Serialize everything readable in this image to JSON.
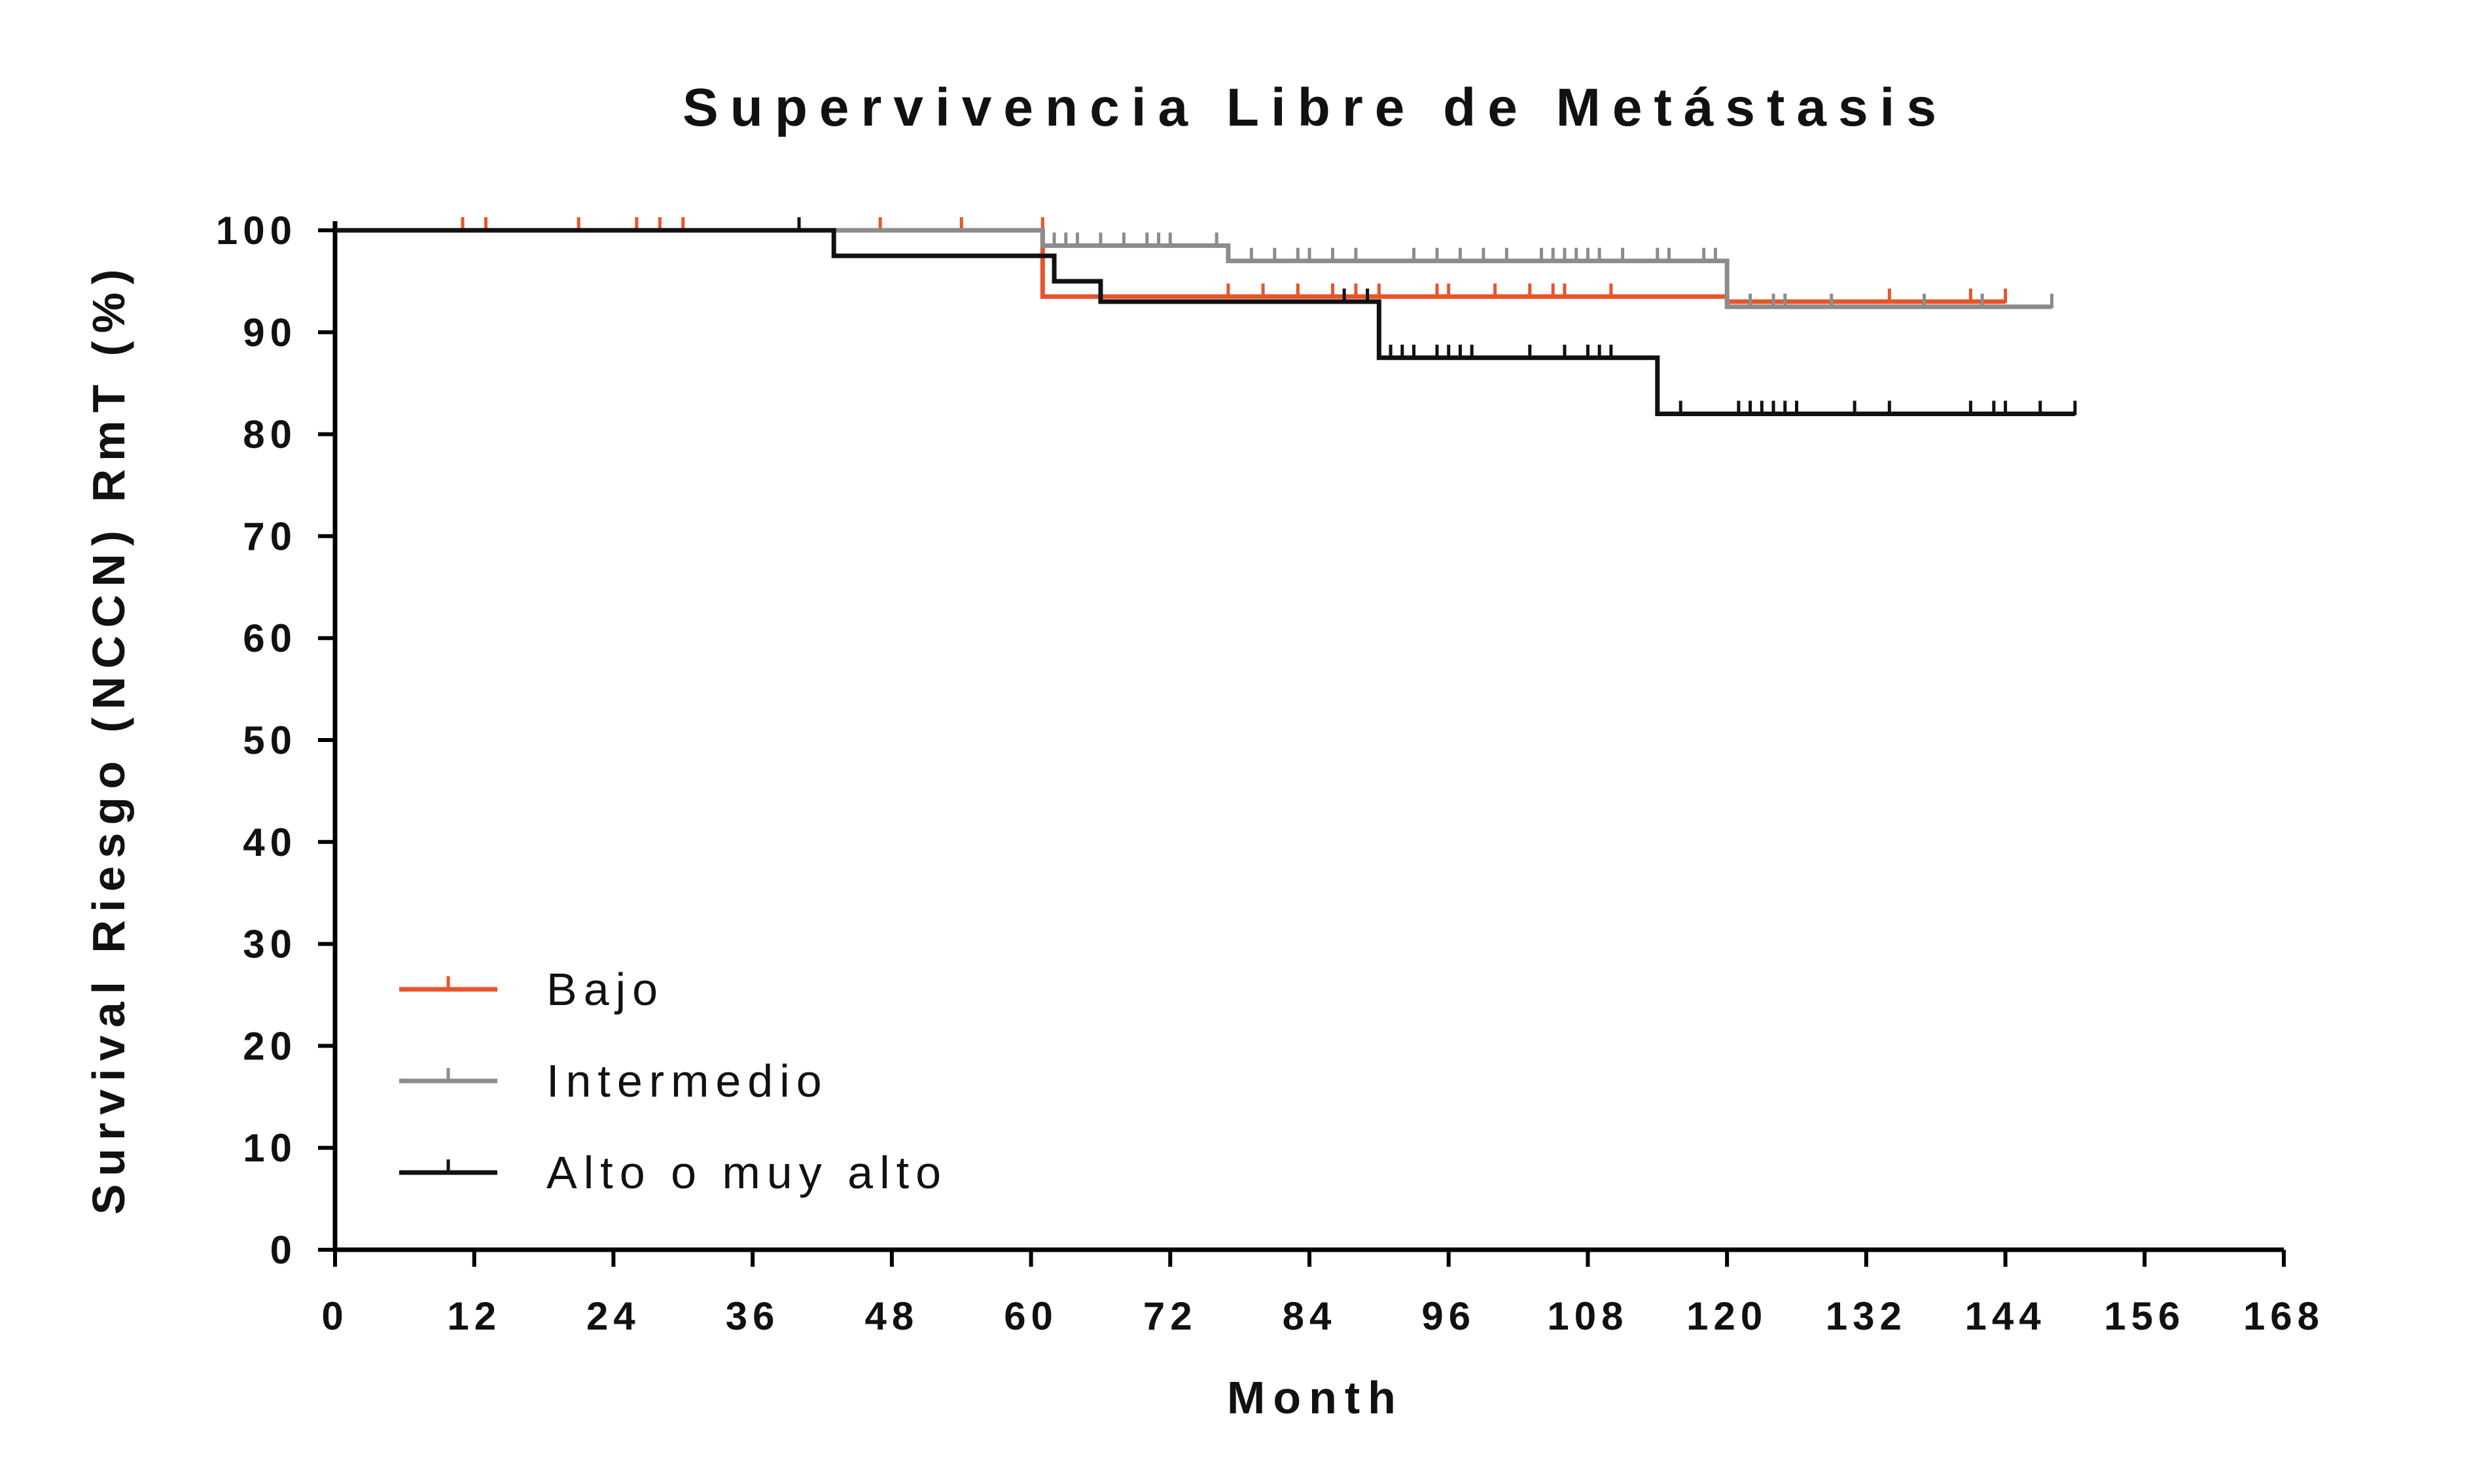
{
  "chart_data": {
    "type": "line",
    "style": "step",
    "title": "Supervivencia Libre de Metástasis",
    "xlabel": "Month",
    "ylabel": "Survival Riesgo (NCCN) RmT (%)",
    "xlim": [
      0,
      168
    ],
    "ylim": [
      0,
      100
    ],
    "xticks": [
      0,
      12,
      24,
      36,
      48,
      60,
      72,
      84,
      96,
      108,
      120,
      132,
      144,
      156,
      168
    ],
    "yticks": [
      0,
      10,
      20,
      30,
      40,
      50,
      60,
      70,
      80,
      90,
      100
    ],
    "grid": false,
    "legend_position": "bottom-left",
    "series": [
      {
        "name": "Bajo",
        "color": "#e8542a",
        "steps": [
          [
            0,
            100
          ],
          [
            61,
            93.5
          ],
          [
            120,
            93
          ],
          [
            144,
            93
          ]
        ],
        "censored": [
          [
            11,
            100
          ],
          [
            13,
            100
          ],
          [
            21,
            100
          ],
          [
            26,
            100
          ],
          [
            28,
            100
          ],
          [
            30,
            100
          ],
          [
            47,
            100
          ],
          [
            54,
            100
          ],
          [
            61,
            100
          ],
          [
            77,
            93.5
          ],
          [
            80,
            93.5
          ],
          [
            83,
            93.5
          ],
          [
            86,
            93.5
          ],
          [
            88,
            93.5
          ],
          [
            90,
            93.5
          ],
          [
            95,
            93.5
          ],
          [
            96,
            93.5
          ],
          [
            100,
            93.5
          ],
          [
            103,
            93.5
          ],
          [
            105,
            93.5
          ],
          [
            106,
            93.5
          ],
          [
            110,
            93.5
          ],
          [
            134,
            93
          ],
          [
            141,
            93
          ],
          [
            144,
            93
          ]
        ]
      },
      {
        "name": "Intermedio",
        "color": "#8c8c8c",
        "steps": [
          [
            0,
            100
          ],
          [
            61,
            98.5
          ],
          [
            77,
            97
          ],
          [
            120,
            92.5
          ],
          [
            148,
            92.5
          ]
        ],
        "censored": [
          [
            62,
            98.5
          ],
          [
            63,
            98.5
          ],
          [
            64,
            98.5
          ],
          [
            66,
            98.5
          ],
          [
            68,
            98.5
          ],
          [
            70,
            98.5
          ],
          [
            71,
            98.5
          ],
          [
            72,
            98.5
          ],
          [
            76,
            98.5
          ],
          [
            79,
            97
          ],
          [
            81,
            97
          ],
          [
            83,
            97
          ],
          [
            84,
            97
          ],
          [
            86,
            97
          ],
          [
            88,
            97
          ],
          [
            93,
            97
          ],
          [
            95,
            97
          ],
          [
            97,
            97
          ],
          [
            99,
            97
          ],
          [
            101,
            97
          ],
          [
            104,
            97
          ],
          [
            105,
            97
          ],
          [
            106,
            97
          ],
          [
            107,
            97
          ],
          [
            108,
            97
          ],
          [
            109,
            97
          ],
          [
            111,
            97
          ],
          [
            114,
            97
          ],
          [
            115,
            97
          ],
          [
            118,
            97
          ],
          [
            119,
            97
          ],
          [
            122,
            92.5
          ],
          [
            124,
            92.5
          ],
          [
            125,
            92.5
          ],
          [
            129,
            92.5
          ],
          [
            137,
            92.5
          ],
          [
            142,
            92.5
          ],
          [
            148,
            92.5
          ]
        ]
      },
      {
        "name": "Alto o muy alto",
        "color": "#111111",
        "steps": [
          [
            0,
            100
          ],
          [
            43,
            97.5
          ],
          [
            62,
            95
          ],
          [
            66,
            93
          ],
          [
            90,
            87.5
          ],
          [
            114,
            82
          ],
          [
            150,
            82
          ]
        ],
        "censored": [
          [
            40,
            100
          ],
          [
            87,
            93
          ],
          [
            89,
            93
          ],
          [
            91,
            87.5
          ],
          [
            92,
            87.5
          ],
          [
            93,
            87.5
          ],
          [
            95,
            87.5
          ],
          [
            96,
            87.5
          ],
          [
            97,
            87.5
          ],
          [
            98,
            87.5
          ],
          [
            103,
            87.5
          ],
          [
            106,
            87.5
          ],
          [
            108,
            87.5
          ],
          [
            109,
            87.5
          ],
          [
            110,
            87.5
          ],
          [
            116,
            82
          ],
          [
            121,
            82
          ],
          [
            122,
            82
          ],
          [
            123,
            82
          ],
          [
            124,
            82
          ],
          [
            125,
            82
          ],
          [
            126,
            82
          ],
          [
            131,
            82
          ],
          [
            134,
            82
          ],
          [
            141,
            82
          ],
          [
            143,
            82
          ],
          [
            144,
            82
          ],
          [
            147,
            82
          ],
          [
            150,
            82
          ]
        ]
      }
    ]
  }
}
